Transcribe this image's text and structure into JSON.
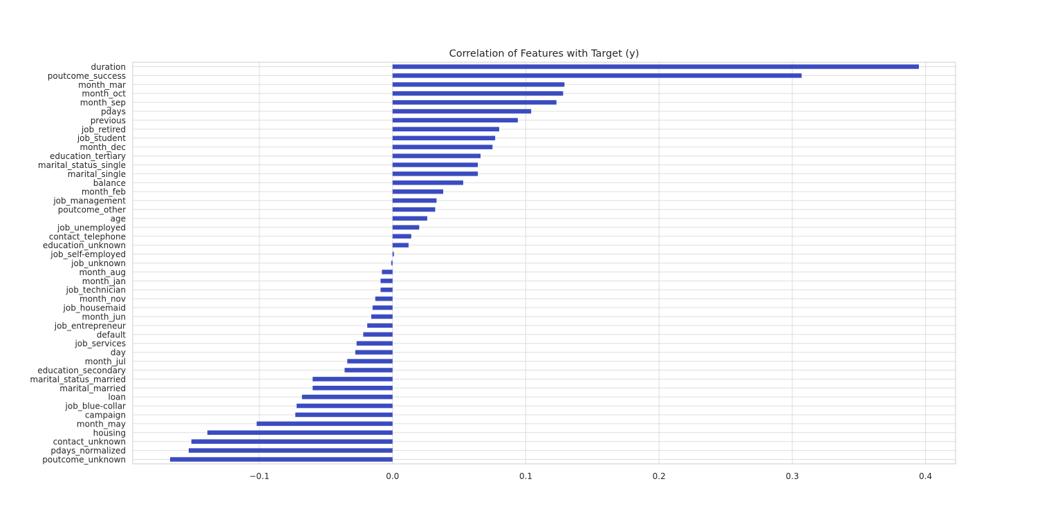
{
  "chart_data": {
    "type": "bar",
    "orientation": "horizontal",
    "title": "Correlation of Features with Target (y)",
    "xlabel": "",
    "ylabel": "",
    "xlim": [
      -0.195,
      0.4225
    ],
    "xticks": [
      -0.1,
      0.0,
      0.1,
      0.2,
      0.3,
      0.4
    ],
    "xtick_labels": [
      "−0.1",
      "0.0",
      "0.1",
      "0.2",
      "0.3",
      "0.4"
    ],
    "grid": true,
    "legend": "none",
    "bar_color": "#3b4cc0",
    "categories": [
      "duration",
      "poutcome_success",
      "month_mar",
      "month_oct",
      "month_sep",
      "pdays",
      "previous",
      "job_retired",
      "job_student",
      "month_dec",
      "education_tertiary",
      "marital_status_single",
      "marital_single",
      "balance",
      "month_feb",
      "job_management",
      "poutcome_other",
      "age",
      "job_unemployed",
      "contact_telephone",
      "education_unknown",
      "job_self-employed",
      "job_unknown",
      "month_aug",
      "month_jan",
      "job_technician",
      "month_nov",
      "job_housemaid",
      "month_jun",
      "job_entrepreneur",
      "default",
      "job_services",
      "day",
      "month_jul",
      "education_secondary",
      "marital_status_married",
      "marital_married",
      "loan",
      "job_blue-collar",
      "campaign",
      "month_may",
      "housing",
      "contact_unknown",
      "pdays_normalized",
      "poutcome_unknown"
    ],
    "values": [
      0.395,
      0.307,
      0.129,
      0.128,
      0.123,
      0.104,
      0.094,
      0.08,
      0.077,
      0.075,
      0.066,
      0.064,
      0.064,
      0.053,
      0.038,
      0.033,
      0.032,
      0.026,
      0.02,
      0.014,
      0.012,
      0.001,
      -0.001,
      -0.008,
      -0.009,
      -0.009,
      -0.013,
      -0.015,
      -0.016,
      -0.019,
      -0.022,
      -0.027,
      -0.028,
      -0.034,
      -0.036,
      -0.06,
      -0.06,
      -0.068,
      -0.072,
      -0.073,
      -0.102,
      -0.139,
      -0.151,
      -0.153,
      -0.167
    ]
  }
}
